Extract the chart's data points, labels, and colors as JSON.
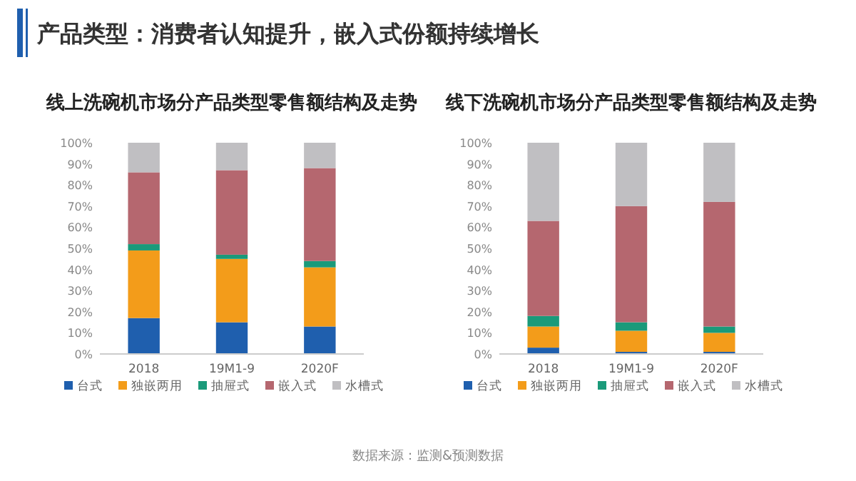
{
  "chart_data": [
    {
      "type": "bar",
      "stacked": true,
      "title": "线上洗碗机市场分产品类型零售额结构及走势",
      "annotations": [
        "产品类型：消费者认知提升，嵌入式份额持续增长"
      ],
      "categories": [
        "2018",
        "19M1-9",
        "2020F"
      ],
      "series": [
        {
          "name": "台式",
          "color": "#1f5fae",
          "values": [
            17,
            15,
            13
          ]
        },
        {
          "name": "独嵌两用",
          "color": "#f39c1a",
          "values": [
            32,
            30,
            28
          ]
        },
        {
          "name": "抽屉式",
          "color": "#1a9a7a",
          "values": [
            3,
            2,
            3
          ]
        },
        {
          "name": "嵌入式",
          "color": "#b5676f",
          "values": [
            34,
            40,
            44
          ]
        },
        {
          "name": "水槽式",
          "color": "#c0bfc2",
          "values": [
            14,
            13,
            12
          ]
        }
      ],
      "ylim": [
        0,
        100
      ],
      "yticks": [
        {
          "value": 0,
          "label": "0%"
        },
        {
          "value": 10,
          "label": "10%"
        },
        {
          "value": 20,
          "label": "20%"
        },
        {
          "value": 30,
          "label": "30%"
        },
        {
          "value": 40,
          "label": "40%"
        },
        {
          "value": 50,
          "label": "50%"
        },
        {
          "value": 60,
          "label": "60%"
        },
        {
          "value": 70,
          "label": "70%"
        },
        {
          "value": 80,
          "label": "80%"
        },
        {
          "value": 90,
          "label": "90%"
        },
        {
          "value": 100,
          "label": "100%"
        }
      ],
      "legend": "bottom"
    },
    {
      "type": "bar",
      "stacked": true,
      "title": "线下洗碗机市场分产品类型零售额结构及走势",
      "annotations": [
        "数据来源：监测&预测数据"
      ],
      "categories": [
        "2018",
        "19M1-9",
        "2020F"
      ],
      "series": [
        {
          "name": "台式",
          "color": "#1f5fae",
          "values": [
            3,
            1,
            1
          ]
        },
        {
          "name": "独嵌两用",
          "color": "#f39c1a",
          "values": [
            10,
            10,
            9
          ]
        },
        {
          "name": "抽屉式",
          "color": "#1a9a7a",
          "values": [
            5,
            4,
            3
          ]
        },
        {
          "name": "嵌入式",
          "color": "#b5676f",
          "values": [
            45,
            55,
            59
          ]
        },
        {
          "name": "水槽式",
          "color": "#c0bfc2",
          "values": [
            37,
            30,
            28
          ]
        }
      ],
      "ylim": [
        0,
        100
      ],
      "yticks": [
        {
          "value": 0,
          "label": "0%"
        },
        {
          "value": 10,
          "label": "10%"
        },
        {
          "value": 20,
          "label": "20%"
        },
        {
          "value": 30,
          "label": "30%"
        },
        {
          "value": 40,
          "label": "40%"
        },
        {
          "value": 50,
          "label": "50%"
        },
        {
          "value": 60,
          "label": "60%"
        },
        {
          "value": 70,
          "label": "70%"
        },
        {
          "value": 80,
          "label": "80%"
        },
        {
          "value": 90,
          "label": "90%"
        },
        {
          "value": 100,
          "label": "100%"
        }
      ],
      "legend": "bottom"
    }
  ]
}
